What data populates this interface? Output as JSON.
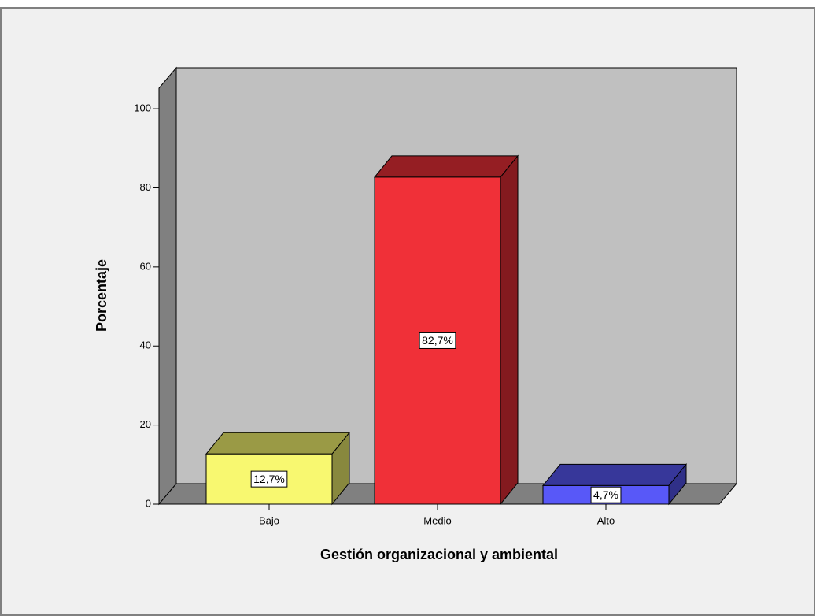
{
  "chart_data": {
    "type": "bar3d",
    "x_label": "Gestión organizacional y ambiental",
    "y_label": "Porcentaje",
    "categories": [
      "Bajo",
      "Medio",
      "Alto"
    ],
    "values": [
      12.7,
      82.7,
      4.7
    ],
    "value_labels": [
      "12,7%",
      "82,7%",
      "4,7%"
    ],
    "colors": [
      "#f8f870",
      "#f03038",
      "#5858f8"
    ],
    "ylim": [
      0,
      105
    ],
    "yticks": [
      0,
      20,
      40,
      60,
      80,
      100
    ]
  }
}
